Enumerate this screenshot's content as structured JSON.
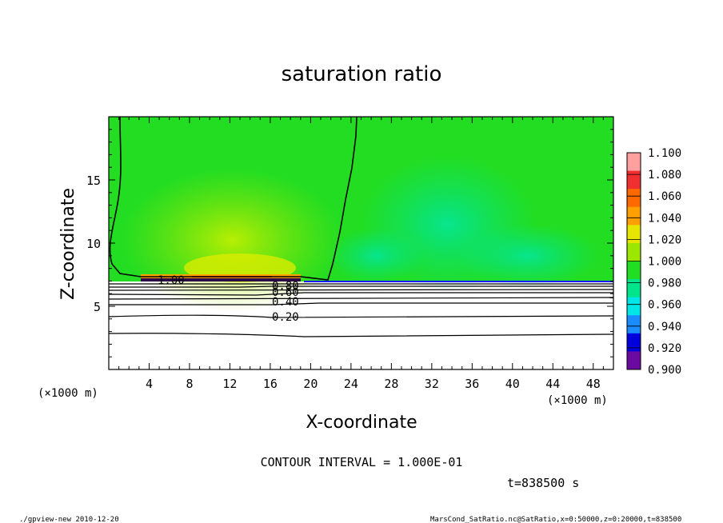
{
  "chart_data": {
    "type": "heatmap",
    "title": "saturation ratio",
    "xlabel": "X-coordinate",
    "ylabel": "Z-coordinate",
    "x_unit": "(×1000 m)",
    "y_unit": "(×1000 m)",
    "xlim": [
      0,
      50
    ],
    "ylim": [
      0,
      20
    ],
    "x_ticks": [
      "4",
      "8",
      "12",
      "16",
      "20",
      "24",
      "28",
      "32",
      "36",
      "40",
      "44",
      "48"
    ],
    "y_ticks": [
      "5",
      "10",
      "15"
    ],
    "colorbar": {
      "levels": [
        "1.100",
        "1.080",
        "1.060",
        "1.040",
        "1.020",
        "1.000",
        "0.980",
        "0.960",
        "0.940",
        "0.920",
        "0.900"
      ],
      "colors": [
        "#ff9f9f",
        "#f03030",
        "#ff6a00",
        "#ffa000",
        "#e6e600",
        "#9ce600",
        "#22dd22",
        "#00e48c",
        "#00e6e6",
        "#1a8cff",
        "#0000dd",
        "#6a0aa0"
      ]
    },
    "contour_labels": [
      "1.00",
      "0.80",
      "0.60",
      "0.40",
      "0.20"
    ],
    "contour_interval_text": "CONTOUR INTERVAL = 1.000E-01",
    "time_text": "t=838500 s"
  },
  "footer": {
    "left": "./gpview-new  2010-12-20",
    "right": "MarsCond_SatRatio.nc@SatRatio,x=0:50000,z=0:20000,t=838500"
  }
}
